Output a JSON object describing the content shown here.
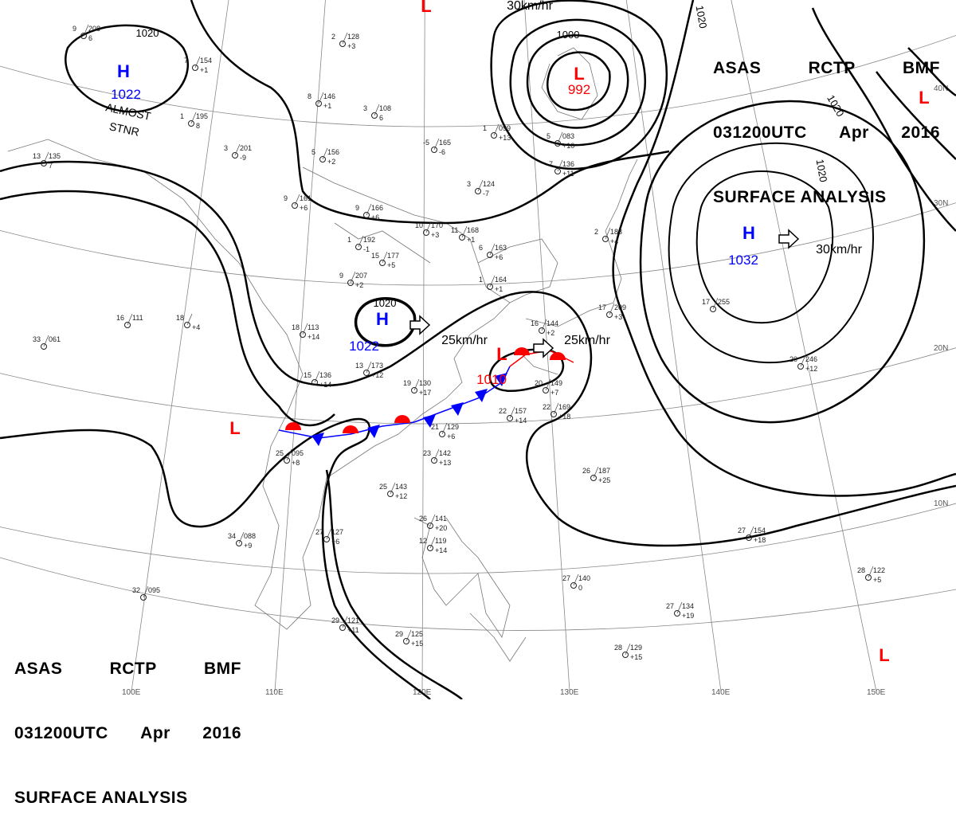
{
  "title": {
    "line1": [
      "ASAS",
      "RCTP",
      "BMF"
    ],
    "line2": [
      "031200UTC",
      "Apr",
      "2016"
    ],
    "line3": "SURFACE ANALYSIS"
  },
  "grid_labels": {
    "meridians": [
      "100E",
      "110E",
      "120E",
      "130E",
      "140E",
      "150E"
    ],
    "parallels": [
      "40N",
      "30N",
      "20N",
      "10N"
    ]
  },
  "pressure_centers": [
    {
      "type": "H",
      "value": "1022",
      "color": "#0000ff"
    },
    {
      "type": "H",
      "value": "1022",
      "color": "#0000ff"
    },
    {
      "type": "H",
      "value": "1032",
      "color": "#0000ff"
    },
    {
      "type": "L",
      "value": "992",
      "color": "#ff0000"
    },
    {
      "type": "L",
      "value": "1010",
      "color": "#ff0000"
    },
    {
      "type": "L",
      "value": "",
      "color": "#ff0000"
    },
    {
      "type": "L",
      "value": "",
      "color": "#ff0000"
    },
    {
      "type": "L",
      "value": "",
      "color": "#ff0000"
    },
    {
      "type": "L",
      "value": "",
      "color": "#ff0000"
    }
  ],
  "isobar_labels": [
    "1020",
    "1020",
    "1000",
    "1020",
    "1020",
    "1020"
  ],
  "movements": [
    "25km/hr",
    "25km/hr",
    "30km/hr",
    "30km/hr"
  ],
  "annotations": {
    "almost": "ALMOST",
    "stnr": "STNR"
  },
  "front": {
    "type": "stationary",
    "warm_color": "#ff0000",
    "cold_color": "#0000ff"
  },
  "stations": [
    [
      "9",
      "208",
      "6"
    ],
    [
      "7",
      "154",
      "+1"
    ],
    [
      "2",
      "128",
      "+3"
    ],
    [
      "3",
      "108",
      "6"
    ],
    [
      "8",
      "146",
      "+1"
    ],
    [
      "1",
      "195",
      "8"
    ],
    [
      "3",
      "201",
      "-9"
    ],
    [
      "5",
      "156",
      "+2"
    ],
    [
      "-5",
      "165",
      "-6"
    ],
    [
      "1",
      "099",
      "+13"
    ],
    [
      "13",
      "135",
      "7"
    ],
    [
      "9",
      "161",
      "+6"
    ],
    [
      "9",
      "166",
      "+6"
    ],
    [
      "10",
      "170",
      "+3"
    ],
    [
      "11",
      "168",
      "+1"
    ],
    [
      "3",
      "124",
      "-7"
    ],
    [
      "2",
      "183",
      "+4"
    ],
    [
      "1",
      "192",
      "-1"
    ],
    [
      "15",
      "177",
      "+5"
    ],
    [
      "6",
      "163",
      "+6"
    ],
    [
      "9",
      "207",
      "+2"
    ],
    [
      "1",
      "164",
      "+1"
    ],
    [
      "16",
      "111",
      ""
    ],
    [
      "33",
      "061",
      ""
    ],
    [
      "18",
      "",
      "+4"
    ],
    [
      "18",
      "113",
      "+14"
    ],
    [
      "13",
      "173",
      "+12"
    ],
    [
      "15",
      "136",
      "+14"
    ],
    [
      "19",
      "130",
      "+17"
    ],
    [
      "20",
      "149",
      "+7"
    ],
    [
      "21",
      "129",
      "+6"
    ],
    [
      "22",
      "157",
      "+14"
    ],
    [
      "22",
      "169",
      "+18"
    ],
    [
      "23",
      "142",
      "+13"
    ],
    [
      "25",
      "143",
      "+12"
    ],
    [
      "25",
      "095",
      "+8"
    ],
    [
      "27",
      "127",
      "+6"
    ],
    [
      "34",
      "088",
      "+9"
    ],
    [
      "32",
      "095",
      ""
    ],
    [
      "29",
      "121",
      "+11"
    ],
    [
      "29",
      "125",
      "+15"
    ],
    [
      "26",
      "141",
      "+20"
    ],
    [
      "12",
      "119",
      "+14"
    ],
    [
      "27",
      "140",
      "0"
    ],
    [
      "26",
      "187",
      "+25"
    ],
    [
      "27",
      "154",
      "+18"
    ],
    [
      "28",
      "122",
      "+5"
    ],
    [
      "27",
      "134",
      "+19"
    ],
    [
      "28",
      "129",
      "+15"
    ],
    [
      "17",
      "255",
      ""
    ],
    [
      "20",
      "246",
      "+12"
    ],
    [
      "16",
      "144",
      "+2"
    ],
    [
      "17",
      "209",
      "+3"
    ],
    [
      "5",
      "083",
      "+10"
    ],
    [
      "-7",
      "136",
      "+11"
    ]
  ]
}
